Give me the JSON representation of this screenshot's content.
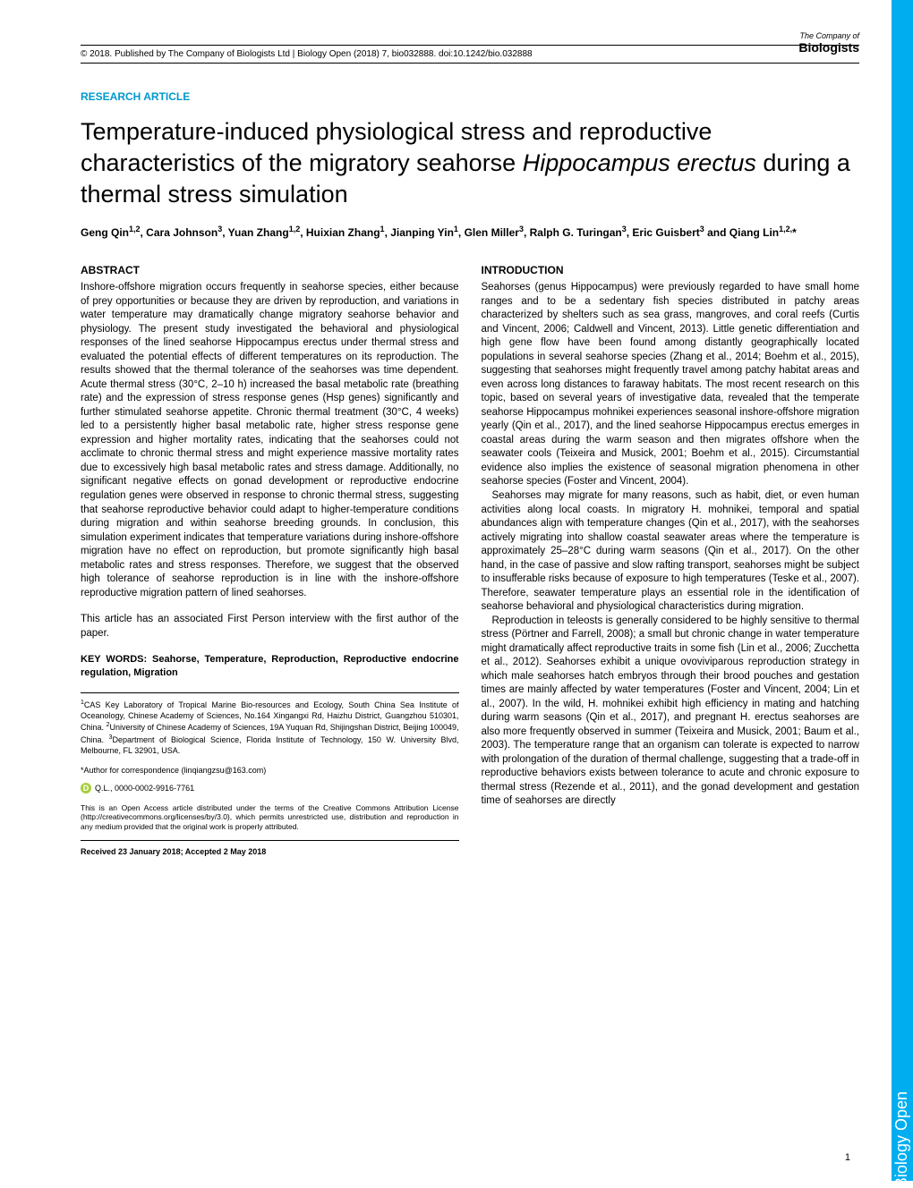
{
  "header": {
    "copyright": "© 2018. Published by The Company of Biologists Ltd | Biology Open (2018) 7, bio032888. doi:10.1242/bio.032888"
  },
  "logo": {
    "company": "The Company of",
    "biologists": "Biologists"
  },
  "article_type": "RESEARCH ARTICLE",
  "title_part1": "Temperature-induced physiological stress and reproductive characteristics of the migratory seahorse ",
  "title_italic": "Hippocampus erectus",
  "title_part2": " during a thermal stress simulation",
  "authors_html": "Geng Qin<sup>1,2</sup>, Cara Johnson<sup>3</sup>, Yuan Zhang<sup>1,2</sup>, Huixian Zhang<sup>1</sup>, Jianping Yin<sup>1</sup>, Glen Miller<sup>3</sup>, Ralph G. Turingan<sup>3</sup>, Eric Guisbert<sup>3</sup> and Qiang Lin<sup>1,2,</sup>*",
  "abstract_head": "ABSTRACT",
  "abstract": "Inshore-offshore migration occurs frequently in seahorse species, either because of prey opportunities or because they are driven by reproduction, and variations in water temperature may dramatically change migratory seahorse behavior and physiology. The present study investigated the behavioral and physiological responses of the lined seahorse Hippocampus erectus under thermal stress and evaluated the potential effects of different temperatures on its reproduction. The results showed that the thermal tolerance of the seahorses was time dependent. Acute thermal stress (30°C, 2–10 h) increased the basal metabolic rate (breathing rate) and the expression of stress response genes (Hsp genes) significantly and further stimulated seahorse appetite. Chronic thermal treatment (30°C, 4 weeks) led to a persistently higher basal metabolic rate, higher stress response gene expression and higher mortality rates, indicating that the seahorses could not acclimate to chronic thermal stress and might experience massive mortality rates due to excessively high basal metabolic rates and stress damage. Additionally, no significant negative effects on gonad development or reproductive endocrine regulation genes were observed in response to chronic thermal stress, suggesting that seahorse reproductive behavior could adapt to higher-temperature conditions during migration and within seahorse breeding grounds. In conclusion, this simulation experiment indicates that temperature variations during inshore-offshore migration have no effect on reproduction, but promote significantly high basal metabolic rates and stress responses. Therefore, we suggest that the observed high tolerance of seahorse reproduction is in line with the inshore-offshore reproductive migration pattern of lined seahorses.",
  "first_person": "This article has an associated First Person interview with the first author of the paper.",
  "keywords": "KEY WORDS: Seahorse, Temperature, Reproduction, Reproductive endocrine regulation, Migration",
  "affiliations_html": "<sup>1</sup>CAS Key Laboratory of Tropical Marine Bio-resources and Ecology, South China Sea Institute of Oceanology, Chinese Academy of Sciences, No.164 Xingangxi Rd, Haizhu District, Guangzhou 510301, China. <sup>2</sup>University of Chinese Academy of Sciences, 19A Yuquan Rd, Shijingshan District, Beijing 100049, China. <sup>3</sup>Department of Biological Science, Florida Institute of Technology, 150 W. University Blvd, Melbourne, FL 32901, USA.",
  "correspondence": "*Author for correspondence (linqiangzsu@163.com)",
  "orcid": "Q.L., 0000-0002-9916-7761",
  "license": "This is an Open Access article distributed under the terms of the Creative Commons Attribution License (http://creativecommons.org/licenses/by/3.0), which permits unrestricted use, distribution and reproduction in any medium provided that the original work is properly attributed.",
  "received": "Received 23 January 2018; Accepted 2 May 2018",
  "intro_head": "INTRODUCTION",
  "intro_p1": "Seahorses (genus Hippocampus) were previously regarded to have small home ranges and to be a sedentary fish species distributed in patchy areas characterized by shelters such as sea grass, mangroves, and coral reefs (Curtis and Vincent, 2006; Caldwell and Vincent, 2013). Little genetic differentiation and high gene flow have been found among distantly geographically located populations in several seahorse species (Zhang et al., 2014; Boehm et al., 2015), suggesting that seahorses might frequently travel among patchy habitat areas and even across long distances to faraway habitats. The most recent research on this topic, based on several years of investigative data, revealed that the temperate seahorse Hippocampus mohnikei experiences seasonal inshore-offshore migration yearly (Qin et al., 2017), and the lined seahorse Hippocampus erectus emerges in coastal areas during the warm season and then migrates offshore when the seawater cools (Teixeira and Musick, 2001; Boehm et al., 2015). Circumstantial evidence also implies the existence of seasonal migration phenomena in other seahorse species (Foster and Vincent, 2004).",
  "intro_p2": "Seahorses may migrate for many reasons, such as habit, diet, or even human activities along local coasts. In migratory H. mohnikei, temporal and spatial abundances align with temperature changes (Qin et al., 2017), with the seahorses actively migrating into shallow coastal seawater areas where the temperature is approximately 25–28°C during warm seasons (Qin et al., 2017). On the other hand, in the case of passive and slow rafting transport, seahorses might be subject to insufferable risks because of exposure to high temperatures (Teske et al., 2007). Therefore, seawater temperature plays an essential role in the identification of seahorse behavioral and physiological characteristics during migration.",
  "intro_p3": "Reproduction in teleosts is generally considered to be highly sensitive to thermal stress (Pörtner and Farrell, 2008); a small but chronic change in water temperature might dramatically affect reproductive traits in some fish (Lin et al., 2006; Zucchetta et al., 2012). Seahorses exhibit a unique ovoviviparous reproduction strategy in which male seahorses hatch embryos through their brood pouches and gestation times are mainly affected by water temperatures (Foster and Vincent, 2004; Lin et al., 2007). In the wild, H. mohnikei exhibit high efficiency in mating and hatching during warm seasons (Qin et al., 2017), and pregnant H. erectus seahorses are also more frequently observed in summer (Teixeira and Musick, 2001; Baum et al., 2003). The temperature range that an organism can tolerate is expected to narrow with prolongation of the duration of thermal challenge, suggesting that a trade-off in reproductive behaviors exists between tolerance to acute and chronic exposure to thermal stress (Rezende et al., 2011), and the gonad development and gestation time of seahorses are directly",
  "side_tab": "Biology Open",
  "page_number": "1"
}
